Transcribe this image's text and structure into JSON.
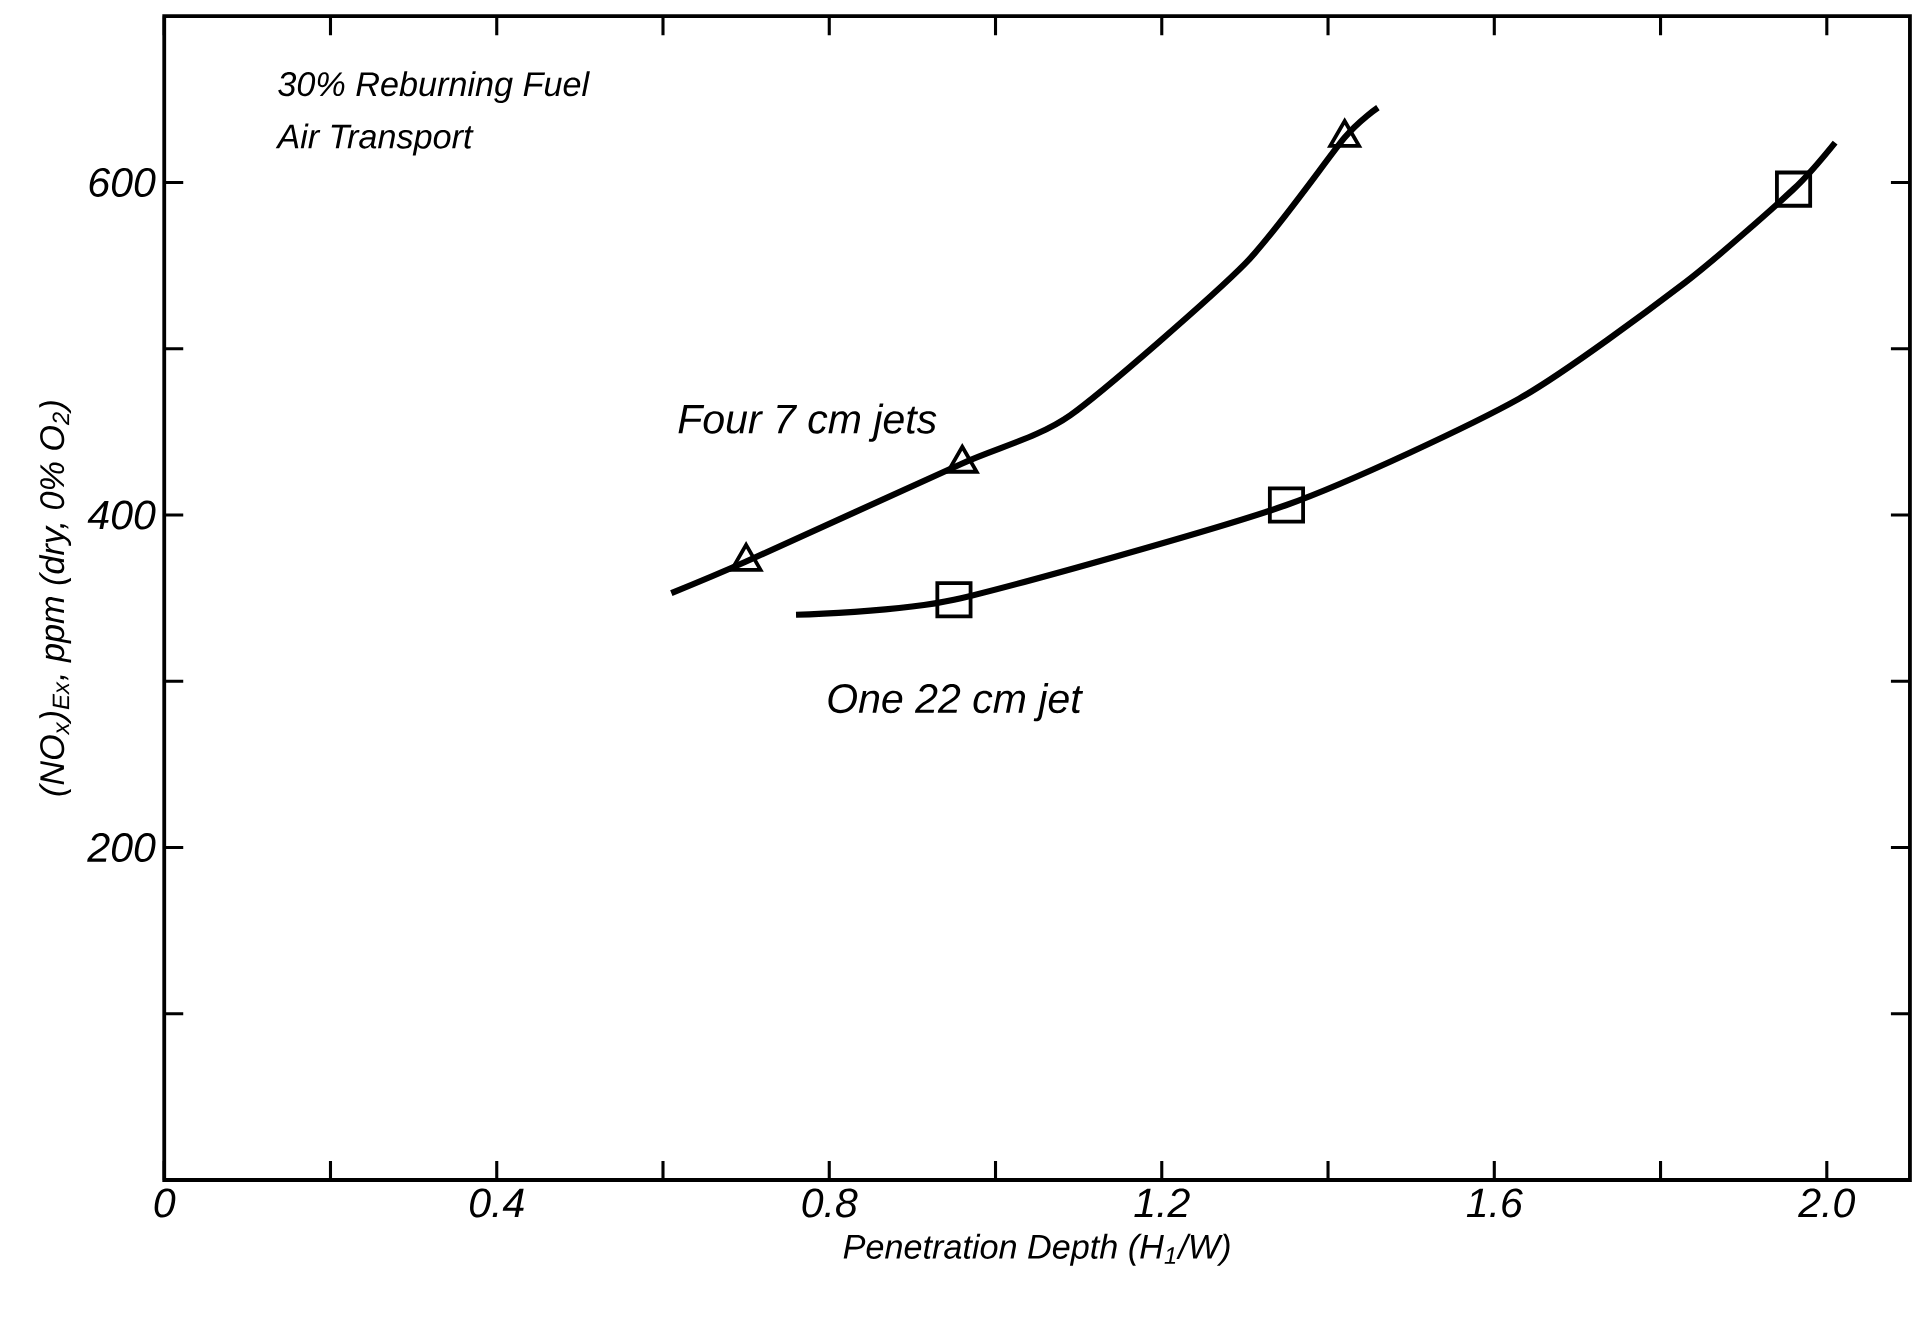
{
  "chart_data": {
    "type": "line",
    "xlabel": "Penetration Depth (H$_{1}$/W)",
    "ylabel": "(NO$_{x}$)$_{Ex}$, ppm (dry, 0% O$_{2}$)",
    "annotations": [
      "30% Reburning Fuel",
      "Air Transport"
    ],
    "xlim": [
      0,
      2.1
    ],
    "ylim": [
      0,
      700
    ],
    "xticks": [
      0,
      {
        "value": 0.2,
        "label": null
      },
      0.4,
      {
        "value": 0.6,
        "label": null
      },
      0.8,
      {
        "value": 1.0,
        "label": null
      },
      1.2,
      {
        "value": 1.4,
        "label": null
      },
      1.6,
      {
        "value": 1.8,
        "label": null
      },
      {
        "value": 2.0,
        "label": "2.0"
      }
    ],
    "yticks": [
      {
        "value": 100,
        "label": null
      },
      200,
      {
        "value": 300,
        "label": null
      },
      400,
      {
        "value": 500,
        "label": null
      },
      600
    ],
    "grid": false,
    "legend": false,
    "series": [
      {
        "name": "Four 7 cm jets",
        "color": "#000000",
        "marker": "none",
        "x": [
          0.61,
          0.7,
          0.96,
          1.09,
          1.3,
          1.42,
          1.46
        ],
        "values": [
          353,
          372,
          431,
          460,
          551,
          627,
          645
        ]
      },
      {
        "name": "One 22 cm jet",
        "color": "#000000",
        "marker": "none",
        "x": [
          0.76,
          0.95,
          1.35,
          1.63,
          1.83,
          1.96,
          2.01
        ],
        "values": [
          340,
          349,
          406,
          470,
          540,
          596,
          624
        ]
      },
      {
        "type": "scatter",
        "color": "#000000",
        "marker": "triangle",
        "x": [
          0.7,
          0.96,
          1.42
        ],
        "values": [
          372,
          431,
          627
        ]
      },
      {
        "type": "scatter",
        "color": "#000000",
        "marker": "square",
        "x": [
          0.95,
          1.35,
          1.96
        ],
        "values": [
          349,
          406,
          596
        ]
      }
    ]
  }
}
